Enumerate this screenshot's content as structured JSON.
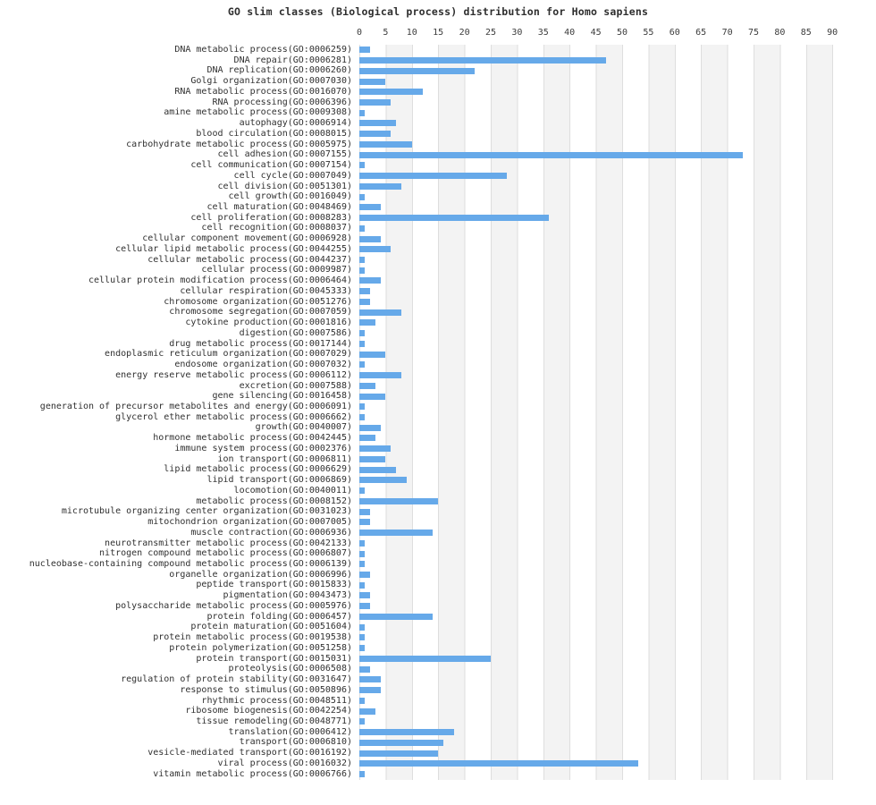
{
  "title": "GO slim classes (Biological process) distribution for Homo sapiens",
  "chart_data": {
    "type": "bar",
    "orientation": "horizontal",
    "title": "GO slim classes (Biological process) distribution for Homo sapiens",
    "xlabel": "",
    "ylabel": "",
    "xlim": [
      0,
      90
    ],
    "x_ticks": [
      0,
      5,
      10,
      15,
      20,
      25,
      30,
      35,
      40,
      45,
      50,
      55,
      60,
      65,
      70,
      75,
      80,
      85,
      90
    ],
    "grid": true,
    "legend_position": "none",
    "bar_color": "#66a9e9",
    "band_stripe_color": "#f3f3f3",
    "gridline_color": "#dedede",
    "categories": [
      "DNA metabolic process(GO:0006259)",
      "DNA repair(GO:0006281)",
      "DNA replication(GO:0006260)",
      "Golgi organization(GO:0007030)",
      "RNA metabolic process(GO:0016070)",
      "RNA processing(GO:0006396)",
      "amine metabolic process(GO:0009308)",
      "autophagy(GO:0006914)",
      "blood circulation(GO:0008015)",
      "carbohydrate metabolic process(GO:0005975)",
      "cell adhesion(GO:0007155)",
      "cell communication(GO:0007154)",
      "cell cycle(GO:0007049)",
      "cell division(GO:0051301)",
      "cell growth(GO:0016049)",
      "cell maturation(GO:0048469)",
      "cell proliferation(GO:0008283)",
      "cell recognition(GO:0008037)",
      "cellular component movement(GO:0006928)",
      "cellular lipid metabolic process(GO:0044255)",
      "cellular metabolic process(GO:0044237)",
      "cellular process(GO:0009987)",
      "cellular protein modification process(GO:0006464)",
      "cellular respiration(GO:0045333)",
      "chromosome organization(GO:0051276)",
      "chromosome segregation(GO:0007059)",
      "cytokine production(GO:0001816)",
      "digestion(GO:0007586)",
      "drug metabolic process(GO:0017144)",
      "endoplasmic reticulum organization(GO:0007029)",
      "endosome organization(GO:0007032)",
      "energy reserve metabolic process(GO:0006112)",
      "excretion(GO:0007588)",
      "gene silencing(GO:0016458)",
      "generation of precursor metabolites and energy(GO:0006091)",
      "glycerol ether metabolic process(GO:0006662)",
      "growth(GO:0040007)",
      "hormone metabolic process(GO:0042445)",
      "immune system process(GO:0002376)",
      "ion transport(GO:0006811)",
      "lipid metabolic process(GO:0006629)",
      "lipid transport(GO:0006869)",
      "locomotion(GO:0040011)",
      "metabolic process(GO:0008152)",
      "microtubule organizing center organization(GO:0031023)",
      "mitochondrion organization(GO:0007005)",
      "muscle contraction(GO:0006936)",
      "neurotransmitter metabolic process(GO:0042133)",
      "nitrogen compound metabolic process(GO:0006807)",
      "nucleobase-containing compound metabolic process(GO:0006139)",
      "organelle organization(GO:0006996)",
      "peptide transport(GO:0015833)",
      "pigmentation(GO:0043473)",
      "polysaccharide metabolic process(GO:0005976)",
      "protein folding(GO:0006457)",
      "protein maturation(GO:0051604)",
      "protein metabolic process(GO:0019538)",
      "protein polymerization(GO:0051258)",
      "protein transport(GO:0015031)",
      "proteolysis(GO:0006508)",
      "regulation of protein stability(GO:0031647)",
      "response to stimulus(GO:0050896)",
      "rhythmic process(GO:0048511)",
      "ribosome biogenesis(GO:0042254)",
      "tissue remodeling(GO:0048771)",
      "translation(GO:0006412)",
      "transport(GO:0006810)",
      "vesicle-mediated transport(GO:0016192)",
      "viral process(GO:0016032)",
      "vitamin metabolic process(GO:0006766)"
    ],
    "values": [
      2,
      47,
      22,
      5,
      12,
      6,
      1,
      7,
      6,
      10,
      73,
      1,
      28,
      8,
      1,
      4,
      36,
      1,
      4,
      6,
      1,
      1,
      4,
      2,
      2,
      8,
      3,
      1,
      1,
      5,
      1,
      8,
      3,
      5,
      1,
      1,
      4,
      3,
      6,
      5,
      7,
      9,
      1,
      15,
      2,
      2,
      14,
      1,
      1,
      1,
      2,
      1,
      2,
      2,
      14,
      1,
      1,
      1,
      25,
      2,
      4,
      4,
      1,
      3,
      1,
      18,
      16,
      15,
      53,
      1
    ]
  }
}
